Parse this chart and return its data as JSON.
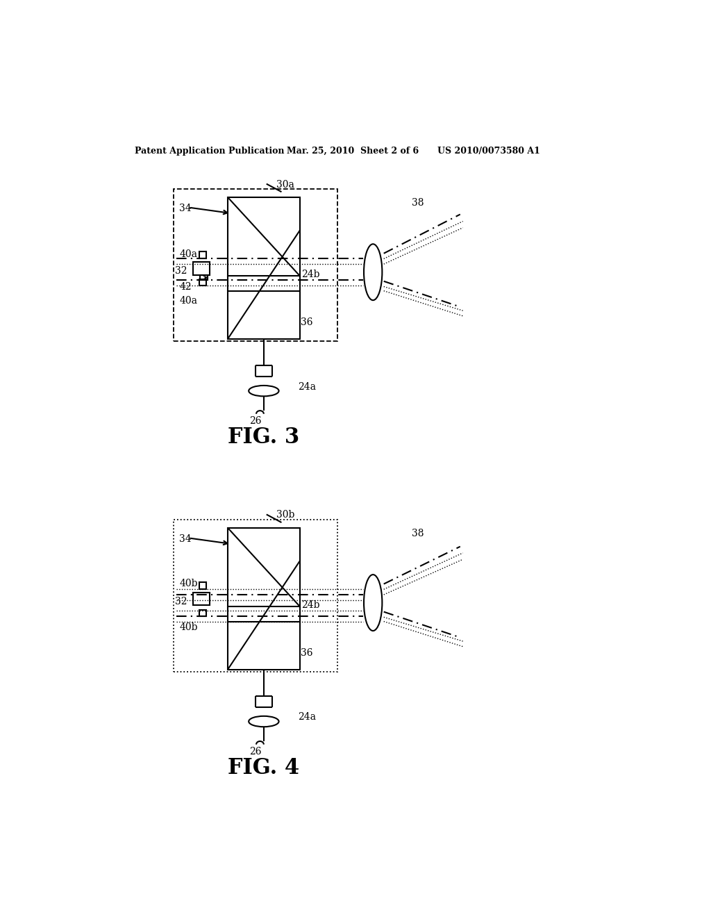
{
  "bg_color": "#ffffff",
  "header_left": "Patent Application Publication",
  "header_mid": "Mar. 25, 2010  Sheet 2 of 6",
  "header_right": "US 2010/0073580 A1",
  "fig3_label": "FIG. 3",
  "fig4_label": "FIG. 4",
  "fig3_callout": "30a",
  "fig4_callout": "30b"
}
